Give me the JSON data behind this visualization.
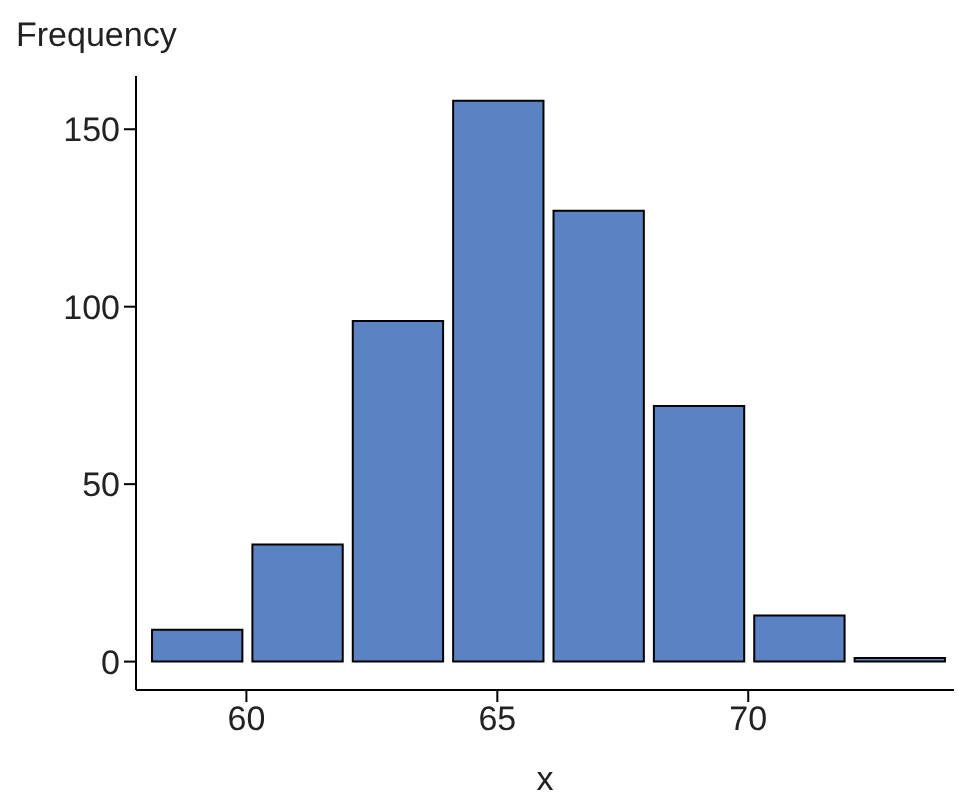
{
  "chart_data": {
    "type": "histogram",
    "ylabel": "Frequency",
    "xlabel": "x",
    "bins": [
      58,
      60,
      62,
      64,
      66,
      68,
      70,
      72,
      74
    ],
    "values": [
      9,
      33,
      96,
      158,
      127,
      72,
      13,
      1
    ],
    "color": "#5b82c3",
    "xlim": [
      57.8,
      74.1
    ],
    "xticks": [
      60,
      65,
      70
    ],
    "ylim": [
      -8,
      165
    ],
    "yticks": [
      0,
      50,
      100,
      150
    ],
    "grid": false
  }
}
